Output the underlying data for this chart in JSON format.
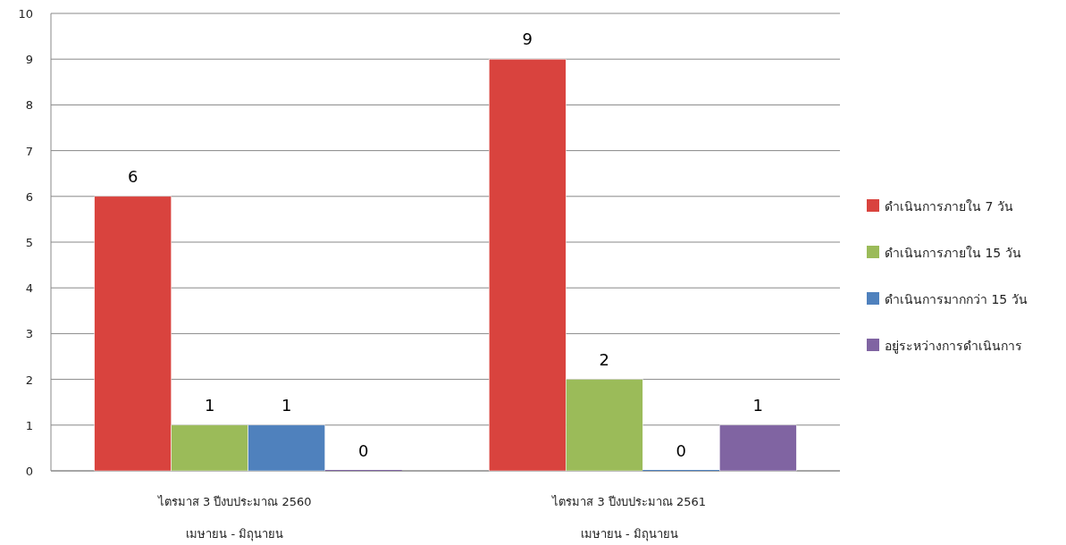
{
  "chart_data": {
    "type": "bar",
    "categories": [
      "ไตรมาส 3 ปีงบประมาณ 2560\nเมษายน - มิถุนายน",
      "ไตรมาส 3 ปีงบประมาณ 2561\nเมษายน - มิถุนายน"
    ],
    "series": [
      {
        "name": "ดำเนินการภายใน 7 วัน",
        "color": "#d9433e",
        "values": [
          6,
          9
        ]
      },
      {
        "name": "ดำเนินการภายใน 15 วัน",
        "color": "#9bbb59",
        "values": [
          1,
          2
        ]
      },
      {
        "name": "ดำเนินการมากกว่า 15 วัน",
        "color": "#4f81bd",
        "values": [
          1,
          0
        ]
      },
      {
        "name": "อยู่ระหว่างการดำเนินการ",
        "color": "#8064a2",
        "values": [
          0,
          1
        ]
      }
    ],
    "ylim": [
      0,
      10
    ],
    "yticks": [
      0,
      1,
      2,
      3,
      4,
      5,
      6,
      7,
      8,
      9,
      10
    ],
    "grid": "y",
    "legend": "right",
    "data_labels": true
  }
}
